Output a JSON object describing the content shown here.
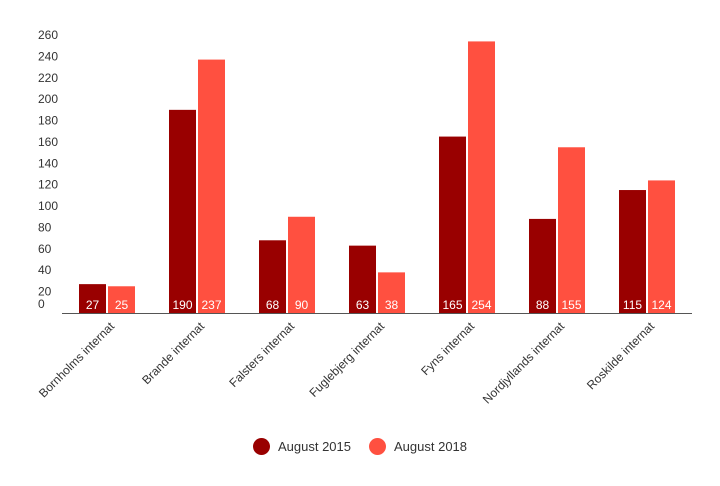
{
  "chart_data": {
    "type": "bar",
    "title": "",
    "xlabel": "",
    "ylabel": "",
    "categories": [
      "Bornholms internat",
      "Brande internat",
      "Falsters internat",
      "Fuglebjerg internat",
      "Fyns internat",
      "Nordjyllands internat",
      "Roskilde internat"
    ],
    "series": [
      {
        "name": "August 2015",
        "color": "#990000",
        "values": [
          27,
          190,
          68,
          63,
          165,
          88,
          115
        ]
      },
      {
        "name": "August 2018",
        "color": "#ff5040",
        "values": [
          25,
          237,
          90,
          38,
          254,
          155,
          124
        ]
      }
    ],
    "ylim": [
      0,
      260
    ],
    "yticks": [
      0,
      20,
      40,
      60,
      80,
      100,
      120,
      140,
      160,
      180,
      200,
      220,
      240,
      260
    ],
    "data_labels_color": "#ffffff",
    "legend_position": "bottom-center"
  }
}
